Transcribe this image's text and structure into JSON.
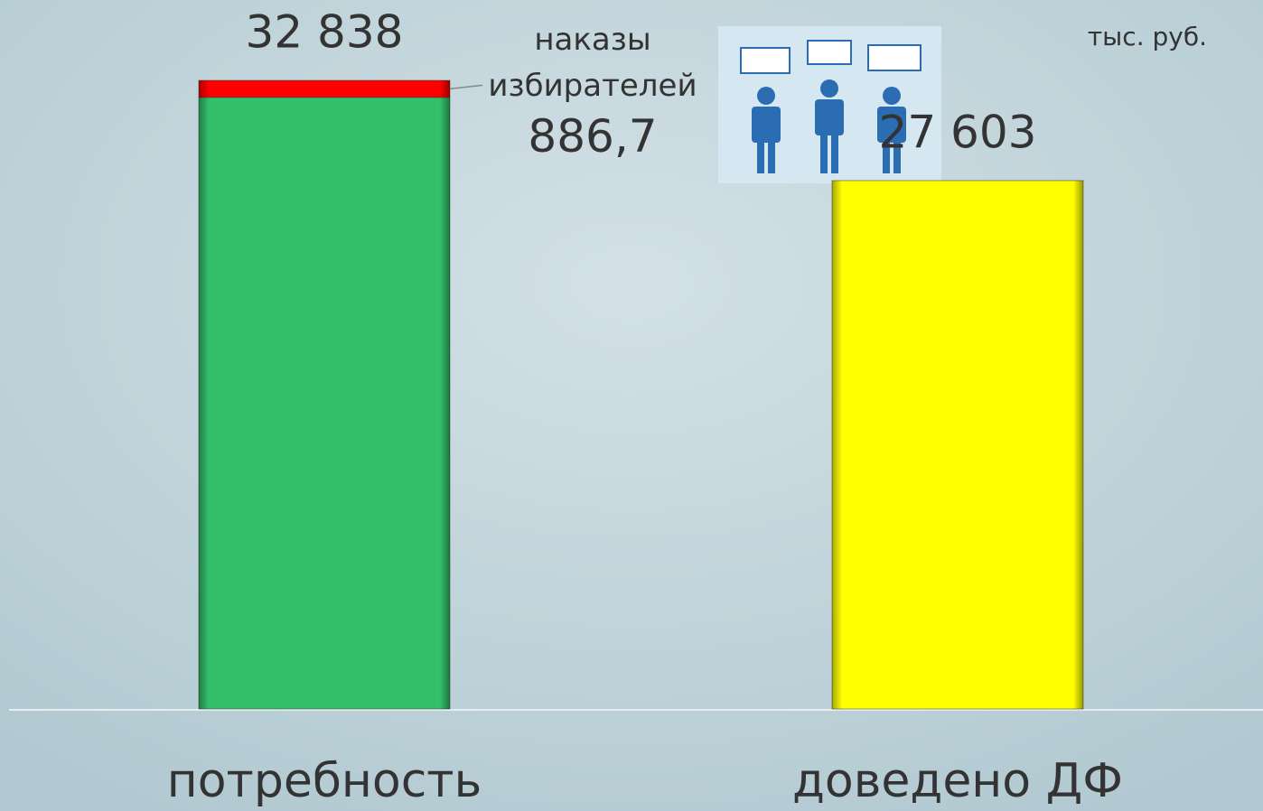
{
  "chart_data": {
    "type": "stacked-bar",
    "unit": "тыс. руб.",
    "categories": [
      "потребность",
      "доведено ДФ"
    ],
    "series": [
      {
        "color": "#34c06a",
        "values": [
          31951.3,
          null
        ]
      },
      {
        "name": "наказы избирателей",
        "color": "#ff0000",
        "values": [
          886.7,
          null
        ],
        "value_labels": [
          "886,7",
          null
        ]
      },
      {
        "color": "#ffff00",
        "values": [
          null,
          27603
        ]
      }
    ],
    "totals": [
      32838,
      27603
    ],
    "total_labels": [
      "32 838",
      "27 603"
    ]
  }
}
